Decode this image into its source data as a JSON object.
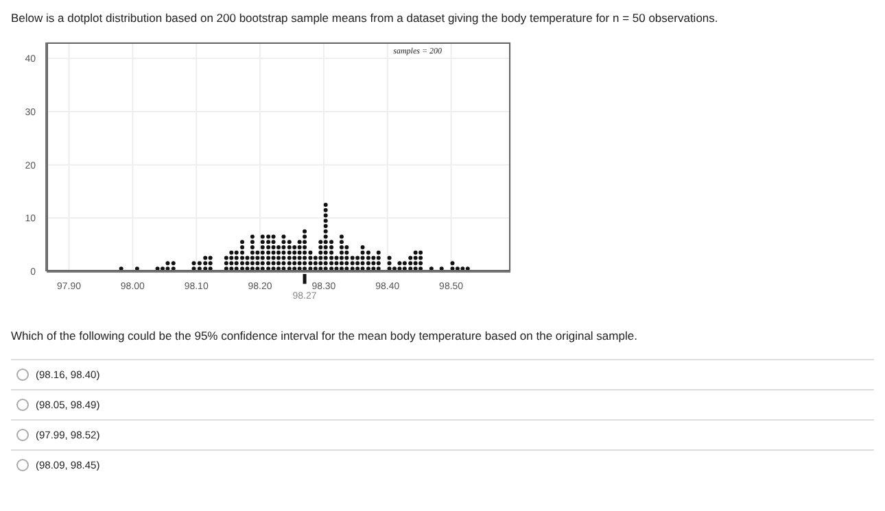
{
  "chart_data": {
    "type": "scatter",
    "title": "Below is a dotplot distribution based on 200 bootstrap sample means from a dataset giving the body temperature for n = 50 observations.",
    "x": [
      97.982,
      98.007,
      98.039,
      98.047,
      98.055,
      98.055,
      98.064,
      98.064,
      98.096,
      98.096,
      98.105,
      98.105,
      98.114,
      98.114,
      98.114,
      98.122,
      98.122,
      98.122,
      98.147,
      98.147,
      98.147,
      98.155,
      98.155,
      98.155,
      98.155,
      98.163,
      98.163,
      98.163,
      98.163,
      98.172,
      98.172,
      98.172,
      98.172,
      98.172,
      98.172,
      98.18,
      98.18,
      98.18,
      98.188,
      98.188,
      98.188,
      98.188,
      98.188,
      98.188,
      98.188,
      98.196,
      98.196,
      98.196,
      98.196,
      98.204,
      98.204,
      98.204,
      98.204,
      98.204,
      98.204,
      98.204,
      98.213,
      98.213,
      98.213,
      98.213,
      98.213,
      98.213,
      98.213,
      98.221,
      98.221,
      98.221,
      98.221,
      98.221,
      98.221,
      98.221,
      98.229,
      98.229,
      98.229,
      98.229,
      98.229,
      98.237,
      98.237,
      98.237,
      98.237,
      98.237,
      98.237,
      98.237,
      98.246,
      98.246,
      98.246,
      98.246,
      98.246,
      98.246,
      98.254,
      98.254,
      98.254,
      98.254,
      98.254,
      98.262,
      98.262,
      98.262,
      98.262,
      98.262,
      98.262,
      98.27,
      98.27,
      98.27,
      98.27,
      98.27,
      98.27,
      98.27,
      98.27,
      98.279,
      98.279,
      98.279,
      98.279,
      98.287,
      98.287,
      98.287,
      98.295,
      98.295,
      98.295,
      98.295,
      98.295,
      98.295,
      98.303,
      98.303,
      98.303,
      98.303,
      98.303,
      98.303,
      98.303,
      98.303,
      98.303,
      98.303,
      98.303,
      98.303,
      98.303,
      98.312,
      98.312,
      98.312,
      98.312,
      98.312,
      98.312,
      98.32,
      98.32,
      98.32,
      98.328,
      98.328,
      98.328,
      98.328,
      98.328,
      98.328,
      98.328,
      98.336,
      98.336,
      98.336,
      98.336,
      98.336,
      98.345,
      98.345,
      98.345,
      98.353,
      98.353,
      98.353,
      98.361,
      98.361,
      98.361,
      98.361,
      98.361,
      98.37,
      98.37,
      98.37,
      98.37,
      98.378,
      98.378,
      98.378,
      98.386,
      98.386,
      98.386,
      98.386,
      98.403,
      98.403,
      98.403,
      98.411,
      98.419,
      98.419,
      98.427,
      98.427,
      98.436,
      98.436,
      98.436,
      98.444,
      98.444,
      98.444,
      98.444,
      98.452,
      98.452,
      98.452,
      98.452,
      98.469,
      98.485,
      98.502,
      98.502,
      98.51,
      98.518,
      98.526
    ],
    "values": [
      0.5,
      0.5,
      0.5,
      0.5,
      0.5,
      1.5,
      0.5,
      1.5,
      0.5,
      1.5,
      0.5,
      1.5,
      0.5,
      1.5,
      2.5,
      0.5,
      1.5,
      2.5,
      0.5,
      1.5,
      2.5,
      0.5,
      1.5,
      2.5,
      3.5,
      0.5,
      1.5,
      2.5,
      3.5,
      0.5,
      1.5,
      2.5,
      3.5,
      4.5,
      5.5,
      0.5,
      1.5,
      2.5,
      0.5,
      1.5,
      2.5,
      3.5,
      4.5,
      5.5,
      6.5,
      0.5,
      1.5,
      2.5,
      3.5,
      0.5,
      1.5,
      2.5,
      3.5,
      4.5,
      5.5,
      6.5,
      0.5,
      1.5,
      2.5,
      3.5,
      4.5,
      5.5,
      6.5,
      0.5,
      1.5,
      2.5,
      3.5,
      4.5,
      5.5,
      6.5,
      0.5,
      1.5,
      2.5,
      3.5,
      4.5,
      0.5,
      1.5,
      2.5,
      3.5,
      4.5,
      5.5,
      6.5,
      0.5,
      1.5,
      2.5,
      3.5,
      4.5,
      5.5,
      0.5,
      1.5,
      2.5,
      3.5,
      4.5,
      0.5,
      1.5,
      2.5,
      3.5,
      4.5,
      5.5,
      0.5,
      1.5,
      2.5,
      3.5,
      4.5,
      5.5,
      6.5,
      7.5,
      0.5,
      1.5,
      2.5,
      3.5,
      0.5,
      1.5,
      2.5,
      0.5,
      1.5,
      2.5,
      3.5,
      4.5,
      5.5,
      0.5,
      1.5,
      2.5,
      3.5,
      4.5,
      5.5,
      6.5,
      7.5,
      8.5,
      9.5,
      10.5,
      11.5,
      12.5,
      0.5,
      1.5,
      2.5,
      3.5,
      4.5,
      5.5,
      0.5,
      1.5,
      2.5,
      0.5,
      1.5,
      2.5,
      3.5,
      4.5,
      5.5,
      6.5,
      0.5,
      1.5,
      2.5,
      3.5,
      4.5,
      0.5,
      1.5,
      2.5,
      0.5,
      1.5,
      2.5,
      0.5,
      1.5,
      2.5,
      3.5,
      4.5,
      0.5,
      1.5,
      2.5,
      3.5,
      0.5,
      1.5,
      2.5,
      0.5,
      1.5,
      2.5,
      3.5,
      0.5,
      1.5,
      2.5,
      0.5,
      0.5,
      1.5,
      0.5,
      1.5,
      0.5,
      1.5,
      2.5,
      0.5,
      1.5,
      2.5,
      3.5,
      0.5,
      1.5,
      2.5,
      3.5,
      0.5,
      0.5,
      0.5,
      1.5,
      0.5,
      0.5,
      0.5
    ],
    "color": "#111111",
    "marker": "circle",
    "xlim": [
      97.865,
      98.593
    ],
    "xticks": [
      {
        "value": 97.9,
        "label": "97.90"
      },
      {
        "value": 98.0,
        "label": "98.00"
      },
      {
        "value": 98.1,
        "label": "98.10"
      },
      {
        "value": 98.2,
        "label": "98.20"
      },
      {
        "value": 98.3,
        "label": "98.30"
      },
      {
        "value": 98.4,
        "label": "98.40"
      },
      {
        "value": 98.5,
        "label": "98.50"
      }
    ],
    "ylim": [
      0,
      43
    ],
    "yticks": [
      0,
      10,
      20,
      30,
      40
    ],
    "grid": true,
    "ref_lines": [
      {
        "axis": "x",
        "value": 98.27,
        "label": "98.27"
      }
    ],
    "annotations": [
      "samples = 200",
      "Which of the following could be the 95% confidence interval for the mean body temperature based on the original sample.",
      "(98.16, 98.40)",
      "(98.05, 98.49)",
      "(97.99, 98.52)",
      "(98.09, 98.45)"
    ]
  }
}
